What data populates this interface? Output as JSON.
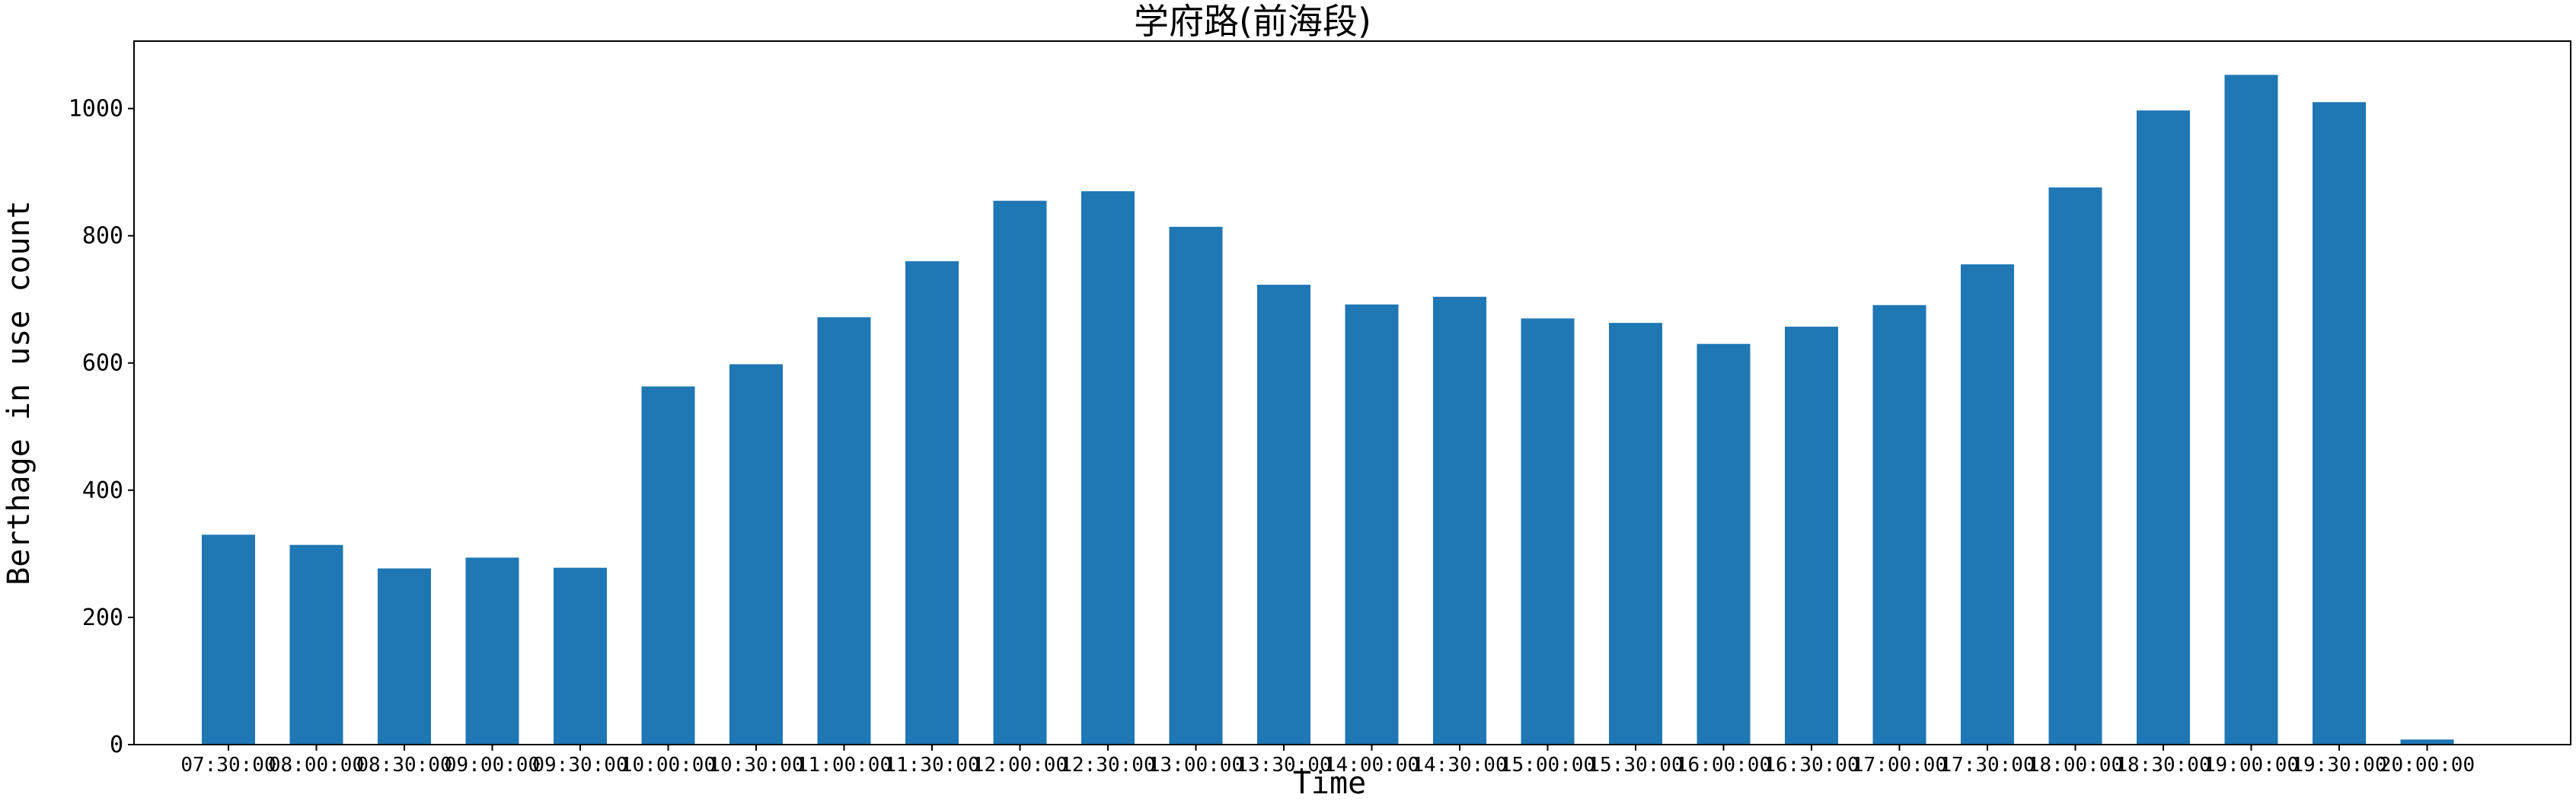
{
  "chart_data": {
    "type": "bar",
    "title": "学府路(前海段)",
    "xlabel": "Time",
    "ylabel": "Berthage in use count",
    "categories": [
      "07:30:00",
      "08:00:00",
      "08:30:00",
      "09:00:00",
      "09:30:00",
      "10:00:00",
      "10:30:00",
      "11:00:00",
      "11:30:00",
      "12:00:00",
      "12:30:00",
      "13:00:00",
      "13:30:00",
      "14:00:00",
      "14:30:00",
      "15:00:00",
      "15:30:00",
      "16:00:00",
      "16:30:00",
      "17:00:00",
      "17:30:00",
      "18:00:00",
      "18:30:00",
      "19:00:00",
      "19:30:00",
      "20:00:00"
    ],
    "values": [
      330,
      314,
      277,
      294,
      278,
      563,
      598,
      672,
      760,
      855,
      870,
      814,
      723,
      692,
      704,
      670,
      663,
      630,
      657,
      691,
      755,
      876,
      997,
      1053,
      1010,
      8
    ],
    "ylim": [
      0,
      1106
    ],
    "yticks": [
      0,
      200,
      400,
      600,
      800,
      1000
    ],
    "bar_color": "#1f77b4",
    "grid": false,
    "legend": "none"
  }
}
